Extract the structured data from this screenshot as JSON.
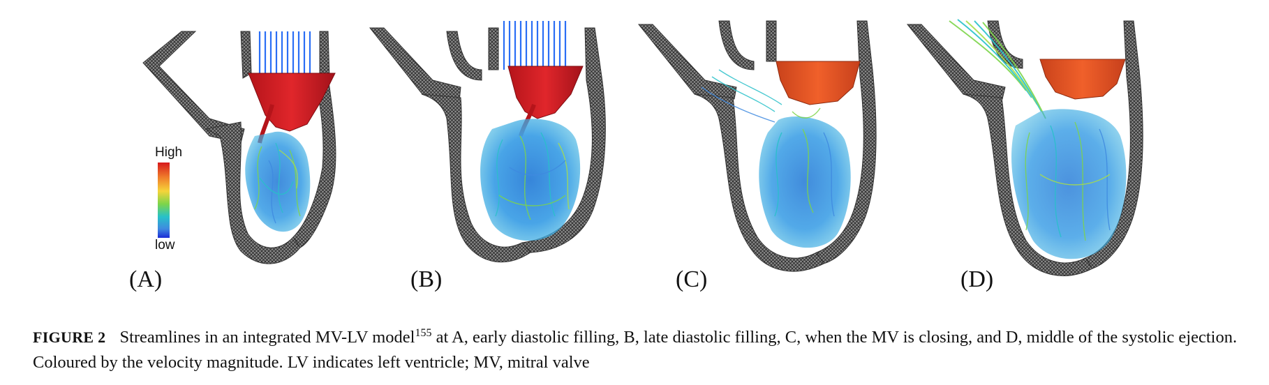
{
  "legend": {
    "high": "High",
    "low": "low",
    "colors": [
      "#d7191c",
      "#f07f2b",
      "#f5d43a",
      "#7dd54a",
      "#27c1c9",
      "#3f8ae0",
      "#1b2bd6"
    ]
  },
  "panels": [
    {
      "label": "(A)"
    },
    {
      "label": "(B)"
    },
    {
      "label": "(C)"
    },
    {
      "label": "(D)"
    }
  ],
  "caption": {
    "figure_label": "FIGURE 2",
    "text_before_ref": "Streamlines in an integrated MV-LV model",
    "ref": "155",
    "text_after_ref": " at A, early diastolic filling, B, late diastolic filling, C, when the MV is closing, and D, middle of the systolic ejection. Coloured by the velocity magnitude. LV indicates left ventricle; MV, mitral valve"
  }
}
